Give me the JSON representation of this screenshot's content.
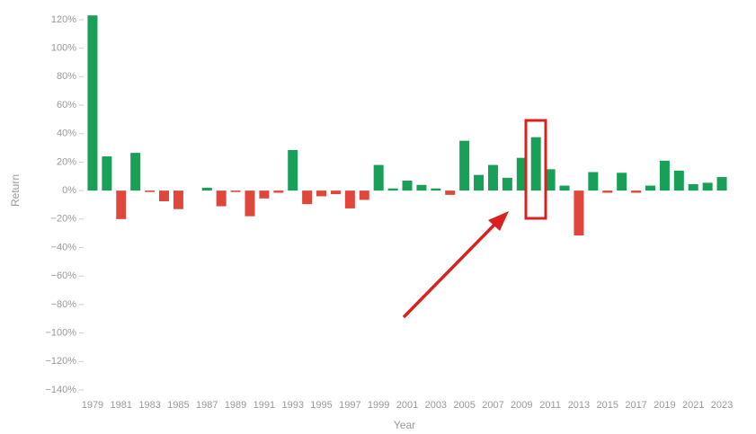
{
  "chart_data": {
    "type": "bar",
    "x_label": "Year",
    "y_label": "Return",
    "categories": [
      "1979",
      null,
      "1981",
      null,
      "1983",
      null,
      "1985",
      null,
      "1987",
      null,
      "1989",
      null,
      "1991",
      null,
      "1993",
      null,
      "1995",
      null,
      "1997",
      null,
      "1999",
      null,
      "2001",
      null,
      "2003",
      null,
      "2005",
      null,
      "2007",
      null,
      "2009",
      null,
      "2011",
      null,
      "2013",
      null,
      "2015",
      null,
      "2017",
      null,
      "2019",
      null,
      "2021",
      null,
      "2023"
    ],
    "values": [
      123,
      24,
      -20,
      26.5,
      -1,
      -7.5,
      -13,
      0,
      2,
      -11,
      -1,
      -18,
      -5.5,
      -1.5,
      28.5,
      -9.5,
      -4,
      -2.5,
      -12.5,
      -6.5,
      18,
      1.5,
      7,
      4,
      1.5,
      -3,
      35,
      11,
      18,
      9,
      23,
      37.5,
      15,
      3.5,
      -31.5,
      13,
      -1.5,
      12.5,
      -1.5,
      3.5,
      21,
      14,
      4.5,
      5.5,
      9.5
    ],
    "positive_color": "#18a058",
    "negative_color": "#e0463a",
    "ylim": [
      -140,
      125
    ],
    "yticks": [
      {
        "value": -140,
        "label": "−140%"
      },
      {
        "value": -120,
        "label": "−120%"
      },
      {
        "value": -100,
        "label": "−100%"
      },
      {
        "value": -80,
        "label": "−80%"
      },
      {
        "value": -60,
        "label": "−60%"
      },
      {
        "value": -40,
        "label": "−40%"
      },
      {
        "value": -20,
        "label": "−20%"
      },
      {
        "value": 0,
        "label": "0%"
      },
      {
        "value": 20,
        "label": "20%"
      },
      {
        "value": 40,
        "label": "40%"
      },
      {
        "value": 60,
        "label": "60%"
      },
      {
        "value": 80,
        "label": "80%"
      },
      {
        "value": 100,
        "label": "100%"
      },
      {
        "value": 120,
        "label": "120%"
      }
    ],
    "grid": false
  }
}
